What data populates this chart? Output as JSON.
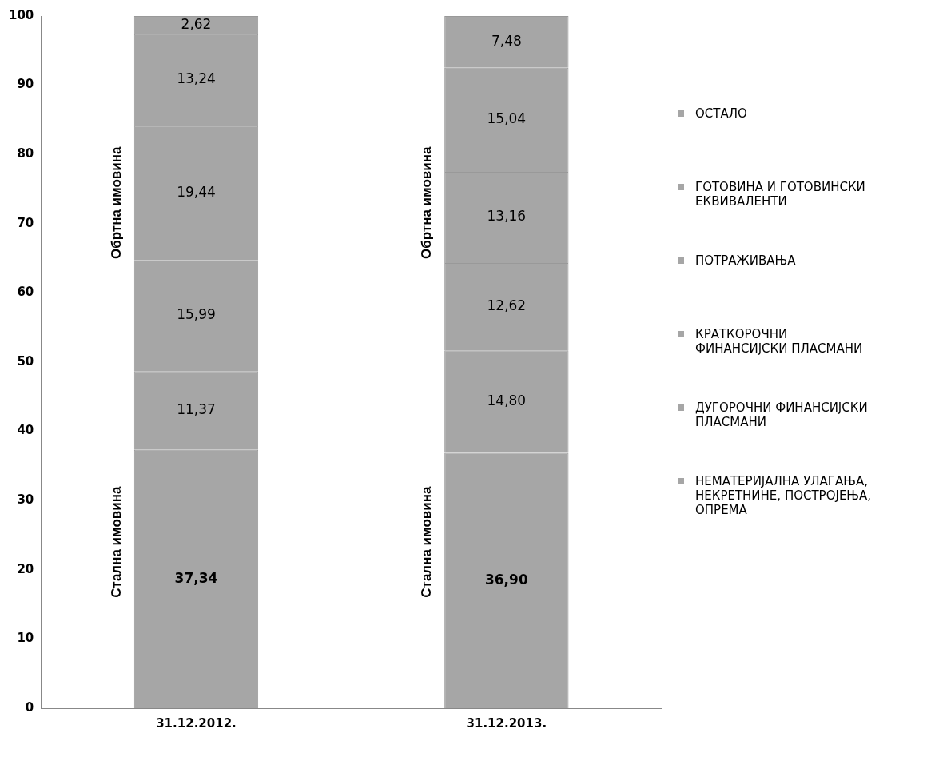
{
  "chart_data": {
    "type": "bar",
    "stacked": true,
    "categories": [
      "31.12.2012.",
      "31.12.2013."
    ],
    "series": [
      {
        "name": "НЕМАТЕРИЈАЛНА УЛАГАЊА, НЕКРЕТНИНЕ, ПОСТРОЈЕЊА, ОПРЕМА",
        "color": "#a6a6a6",
        "values": [
          37.34,
          36.9
        ],
        "value_labels": [
          "37,34",
          "36,90"
        ]
      },
      {
        "name": "ДУГОРОЧНИ ФИНАНСИЈСКИ ПЛАСМАНИ",
        "color": "#a6a6a6",
        "values": [
          11.37,
          14.8
        ],
        "value_labels": [
          "11,37",
          "14,80"
        ]
      },
      {
        "name": "КРАТКОРОЧНИ ФИНАНСИЈСКИ ПЛАСМАНИ",
        "color": "#a6a6a6",
        "values": [
          15.99,
          12.62
        ],
        "value_labels": [
          "15,99",
          "12,62"
        ]
      },
      {
        "name": "ПОТРАЖИВАЊА",
        "color": "#a6a6a6",
        "values": [
          19.44,
          13.16
        ],
        "value_labels": [
          "19,44",
          "13,16"
        ]
      },
      {
        "name": "ГОТОВИНА И ГОТОВИНСКИ ЕКВИВАЛЕНТИ",
        "color": "#a6a6a6",
        "values": [
          13.24,
          15.04
        ],
        "value_labels": [
          "13,24",
          "15,04"
        ]
      },
      {
        "name": "ОСТАЛО",
        "color": "#a6a6a6",
        "values": [
          2.62,
          7.48
        ],
        "value_labels": [
          "2,62",
          "7,48"
        ]
      }
    ],
    "ylim": [
      0,
      100
    ],
    "yticks": [
      0,
      10,
      20,
      30,
      40,
      50,
      60,
      70,
      80,
      90,
      100
    ],
    "grid": false,
    "legend": "right",
    "annotations": [
      "Обртна имовина",
      "Стална имовина",
      "Обртна имовина",
      "Стална имовина"
    ]
  }
}
